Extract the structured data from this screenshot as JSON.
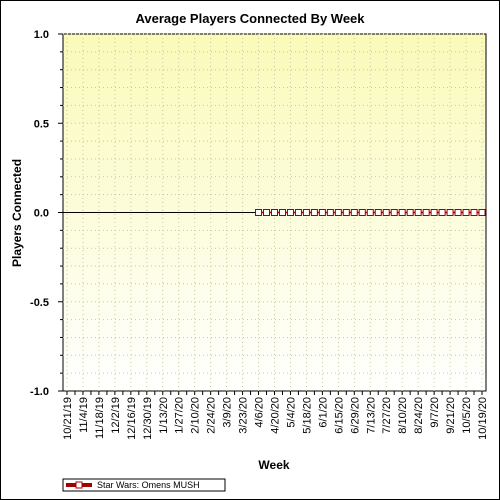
{
  "chart_data": {
    "type": "line",
    "title": "Average Players Connected By Week",
    "xlabel": "Week",
    "ylabel": "Players Connected",
    "ylim": [
      -1.0,
      1.0
    ],
    "yticks": [
      "1.0",
      "0.5",
      "0.0",
      "-0.5",
      "-1.0"
    ],
    "ytick_values": [
      1.0,
      0.5,
      0.0,
      -0.5,
      -1.0
    ],
    "categories": [
      "10/21/19",
      "10/28/19",
      "11/4/19",
      "11/11/19",
      "11/18/19",
      "11/25/19",
      "12/2/19",
      "12/9/19",
      "12/16/19",
      "12/23/19",
      "12/30/19",
      "1/6/20",
      "1/13/20",
      "1/20/20",
      "1/27/20",
      "2/3/20",
      "2/10/20",
      "2/17/20",
      "2/24/20",
      "3/2/20",
      "3/9/20",
      "3/16/20",
      "3/23/20",
      "3/30/20",
      "4/6/20",
      "4/13/20",
      "4/20/20",
      "4/27/20",
      "5/4/20",
      "5/11/20",
      "5/18/20",
      "5/25/20",
      "6/1/20",
      "6/8/20",
      "6/15/20",
      "6/22/20",
      "6/29/20",
      "7/6/20",
      "7/13/20",
      "7/20/20",
      "7/27/20",
      "8/3/20",
      "8/10/20",
      "8/17/20",
      "8/24/20",
      "8/31/20",
      "9/7/20",
      "9/14/20",
      "9/21/20",
      "9/28/20",
      "10/5/20",
      "10/12/20",
      "10/19/20"
    ],
    "tick_labels": [
      "10/21/19",
      "11/4/19",
      "11/18/19",
      "12/2/19",
      "12/16/19",
      "12/30/19",
      "1/13/20",
      "1/27/20",
      "2/10/20",
      "2/24/20",
      "3/9/20",
      "3/23/20",
      "4/6/20",
      "4/20/20",
      "5/4/20",
      "5/18/20",
      "6/1/20",
      "6/15/20",
      "6/29/20",
      "7/13/20",
      "7/27/20",
      "8/10/20",
      "8/24/20",
      "9/7/20",
      "9/21/20",
      "10/5/20",
      "10/19/20"
    ],
    "series": [
      {
        "name": "Star Wars: Omens MUSH",
        "color": "#a00000",
        "values": [
          null,
          null,
          null,
          null,
          null,
          null,
          null,
          null,
          null,
          null,
          null,
          null,
          null,
          null,
          null,
          null,
          null,
          null,
          null,
          null,
          null,
          null,
          null,
          null,
          0,
          0,
          0,
          0,
          0,
          0,
          0,
          0,
          0,
          0,
          0,
          0,
          0,
          0,
          0,
          0,
          0,
          0,
          0,
          0,
          0,
          0,
          0,
          0,
          0,
          0,
          0,
          0,
          0
        ]
      }
    ],
    "grid": "dotted",
    "legend_position": "bottom-left",
    "colors": {
      "plot_background_top": "#fafab9",
      "plot_background_bottom": "#ffffff",
      "grid": "#c8c8a0"
    }
  }
}
